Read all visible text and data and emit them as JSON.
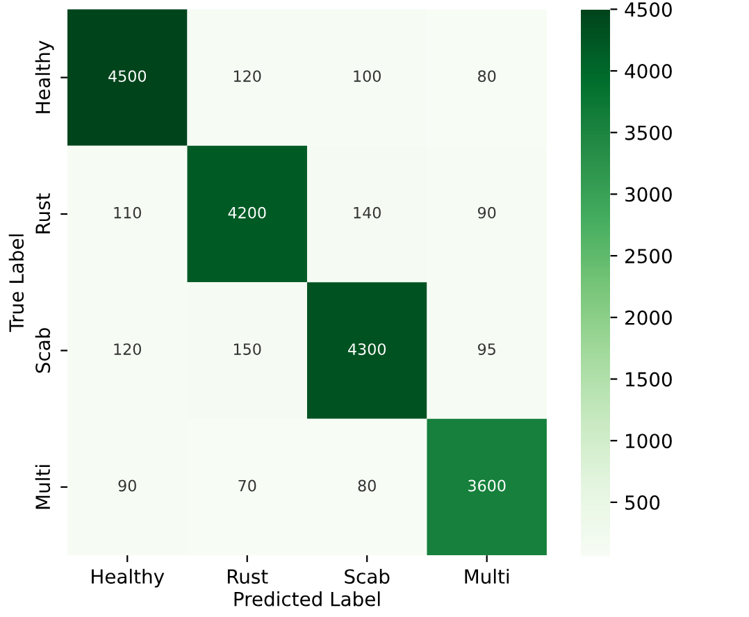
{
  "chart_data": {
    "type": "heatmap",
    "xlabel": "Predicted Label",
    "ylabel": "True Label",
    "categories": [
      "Healthy",
      "Rust",
      "Scab",
      "Multi"
    ],
    "y_categories": [
      "Healthy",
      "Rust",
      "Scab",
      "Multi"
    ],
    "cells": [
      [
        4500,
        120,
        100,
        80
      ],
      [
        110,
        4200,
        140,
        90
      ],
      [
        120,
        150,
        4300,
        95
      ],
      [
        90,
        70,
        80,
        3600
      ]
    ],
    "data_labels": true,
    "clim": [
      70,
      4500
    ],
    "cticks": [
      500,
      1000,
      1500,
      2000,
      2500,
      3000,
      3500,
      4000,
      4500
    ]
  }
}
